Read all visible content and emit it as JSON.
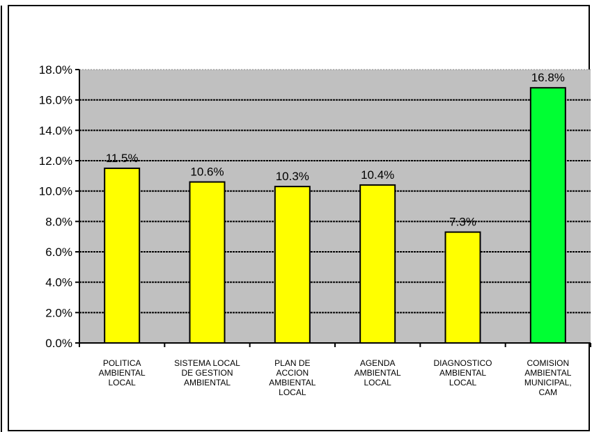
{
  "chart_data": {
    "type": "bar",
    "title": "",
    "xlabel": "",
    "ylabel": "",
    "categories": [
      [
        "POLITICA",
        "AMBIENTAL",
        "LOCAL"
      ],
      [
        "SISTEMA LOCAL",
        "DE GESTION",
        "AMBIENTAL"
      ],
      [
        "PLAN DE",
        "ACCION",
        "AMBIENTAL",
        "LOCAL"
      ],
      [
        "AGENDA",
        "AMBIENTAL",
        "LOCAL"
      ],
      [
        "DIAGNOSTICO",
        "AMBIENTAL",
        "LOCAL"
      ],
      [
        "COMISION",
        "AMBIENTAL",
        "MUNICIPAL,",
        "CAM"
      ]
    ],
    "values": [
      11.5,
      10.6,
      10.3,
      10.4,
      7.3,
      16.8
    ],
    "data_labels": [
      "11.5%",
      "10.6%",
      "10.3%",
      "10.4%",
      "7.3%",
      "16.8%"
    ],
    "bar_colors": [
      "#ffff00",
      "#ffff00",
      "#ffff00",
      "#ffff00",
      "#ffff00",
      "#00ff33"
    ],
    "ylim": [
      0,
      18
    ],
    "yticks": [
      0,
      2,
      4,
      6,
      8,
      10,
      12,
      14,
      16,
      18
    ],
    "ytick_labels": [
      "0.0%",
      "2.0%",
      "4.0%",
      "6.0%",
      "8.0%",
      "10.0%",
      "12.0%",
      "14.0%",
      "16.0%",
      "18.0%"
    ],
    "grid": true,
    "legend": "none",
    "plot_background": "#c0c0c0"
  }
}
